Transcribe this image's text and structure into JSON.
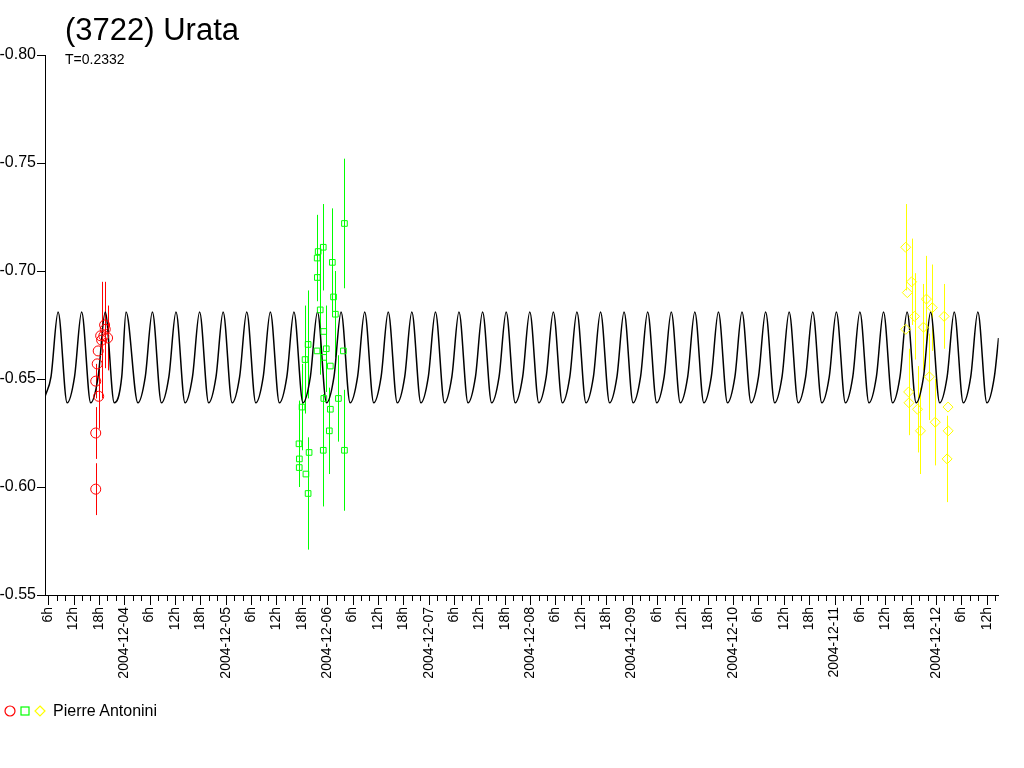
{
  "chart_data": {
    "type": "line",
    "title": "(3722) Urata",
    "subtitle": "T=0.2332",
    "legend": "bottom left",
    "grid": false,
    "xlim": [
      "2004-12-03T05:15",
      "2004-12-12T14:50"
    ],
    "ylim": [
      -0.55,
      -0.8
    ],
    "yticks": [
      {
        "value": -0.8,
        "label": "-0.80"
      },
      {
        "value": -0.75,
        "label": "-0.75"
      },
      {
        "value": -0.7,
        "label": "-0.70"
      },
      {
        "value": -0.65,
        "label": "-0.65"
      },
      {
        "value": -0.6,
        "label": "-0.60"
      },
      {
        "value": -0.55,
        "label": "-0.55"
      }
    ],
    "xticks": [
      {
        "value": "2004-12-03T06:00",
        "label": "6h"
      },
      {
        "value": "2004-12-03T08:00",
        "label": null
      },
      {
        "value": "2004-12-03T10:00",
        "label": null
      },
      {
        "value": "2004-12-03T12:00",
        "label": "12h"
      },
      {
        "value": "2004-12-03T14:00",
        "label": null
      },
      {
        "value": "2004-12-03T16:00",
        "label": null
      },
      {
        "value": "2004-12-03T18:00",
        "label": "18h"
      },
      {
        "value": "2004-12-03T20:00",
        "label": null
      },
      {
        "value": "2004-12-03T22:00",
        "label": null
      },
      {
        "value": "2004-12-04T00:00",
        "label": "2004-12-04"
      },
      {
        "value": "2004-12-04T02:00",
        "label": null
      },
      {
        "value": "2004-12-04T04:00",
        "label": null
      },
      {
        "value": "2004-12-04T06:00",
        "label": "6h"
      },
      {
        "value": "2004-12-04T08:00",
        "label": null
      },
      {
        "value": "2004-12-04T10:00",
        "label": null
      },
      {
        "value": "2004-12-04T12:00",
        "label": "12h"
      },
      {
        "value": "2004-12-04T14:00",
        "label": null
      },
      {
        "value": "2004-12-04T16:00",
        "label": null
      },
      {
        "value": "2004-12-04T18:00",
        "label": "18h"
      },
      {
        "value": "2004-12-04T20:00",
        "label": null
      },
      {
        "value": "2004-12-04T22:00",
        "label": null
      },
      {
        "value": "2004-12-05T00:00",
        "label": "2004-12-05"
      },
      {
        "value": "2004-12-05T02:00",
        "label": null
      },
      {
        "value": "2004-12-05T04:00",
        "label": null
      },
      {
        "value": "2004-12-05T06:00",
        "label": "6h"
      },
      {
        "value": "2004-12-05T08:00",
        "label": null
      },
      {
        "value": "2004-12-05T10:00",
        "label": null
      },
      {
        "value": "2004-12-05T12:00",
        "label": "12h"
      },
      {
        "value": "2004-12-05T14:00",
        "label": null
      },
      {
        "value": "2004-12-05T16:00",
        "label": null
      },
      {
        "value": "2004-12-05T18:00",
        "label": "18h"
      },
      {
        "value": "2004-12-05T20:00",
        "label": null
      },
      {
        "value": "2004-12-05T22:00",
        "label": null
      },
      {
        "value": "2004-12-06T00:00",
        "label": "2004-12-06"
      },
      {
        "value": "2004-12-06T02:00",
        "label": null
      },
      {
        "value": "2004-12-06T04:00",
        "label": null
      },
      {
        "value": "2004-12-06T06:00",
        "label": "6h"
      },
      {
        "value": "2004-12-06T08:00",
        "label": null
      },
      {
        "value": "2004-12-06T10:00",
        "label": null
      },
      {
        "value": "2004-12-06T12:00",
        "label": "12h"
      },
      {
        "value": "2004-12-06T14:00",
        "label": null
      },
      {
        "value": "2004-12-06T16:00",
        "label": null
      },
      {
        "value": "2004-12-06T18:00",
        "label": "18h"
      },
      {
        "value": "2004-12-06T20:00",
        "label": null
      },
      {
        "value": "2004-12-06T22:00",
        "label": null
      },
      {
        "value": "2004-12-07T00:00",
        "label": "2004-12-07"
      },
      {
        "value": "2004-12-07T02:00",
        "label": null
      },
      {
        "value": "2004-12-07T04:00",
        "label": null
      },
      {
        "value": "2004-12-07T06:00",
        "label": "6h"
      },
      {
        "value": "2004-12-07T08:00",
        "label": null
      },
      {
        "value": "2004-12-07T10:00",
        "label": null
      },
      {
        "value": "2004-12-07T12:00",
        "label": "12h"
      },
      {
        "value": "2004-12-07T14:00",
        "label": null
      },
      {
        "value": "2004-12-07T16:00",
        "label": null
      },
      {
        "value": "2004-12-07T18:00",
        "label": "18h"
      },
      {
        "value": "2004-12-07T20:00",
        "label": null
      },
      {
        "value": "2004-12-07T22:00",
        "label": null
      },
      {
        "value": "2004-12-08T00:00",
        "label": "2004-12-08"
      },
      {
        "value": "2004-12-08T02:00",
        "label": null
      },
      {
        "value": "2004-12-08T04:00",
        "label": null
      },
      {
        "value": "2004-12-08T06:00",
        "label": "6h"
      },
      {
        "value": "2004-12-08T08:00",
        "label": null
      },
      {
        "value": "2004-12-08T10:00",
        "label": null
      },
      {
        "value": "2004-12-08T12:00",
        "label": "12h"
      },
      {
        "value": "2004-12-08T14:00",
        "label": null
      },
      {
        "value": "2004-12-08T16:00",
        "label": null
      },
      {
        "value": "2004-12-08T18:00",
        "label": "18h"
      },
      {
        "value": "2004-12-08T20:00",
        "label": null
      },
      {
        "value": "2004-12-08T22:00",
        "label": null
      },
      {
        "value": "2004-12-09T00:00",
        "label": "2004-12-09"
      },
      {
        "value": "2004-12-09T02:00",
        "label": null
      },
      {
        "value": "2004-12-09T04:00",
        "label": null
      },
      {
        "value": "2004-12-09T06:00",
        "label": "6h"
      },
      {
        "value": "2004-12-09T08:00",
        "label": null
      },
      {
        "value": "2004-12-09T10:00",
        "label": null
      },
      {
        "value": "2004-12-09T12:00",
        "label": "12h"
      },
      {
        "value": "2004-12-09T14:00",
        "label": null
      },
      {
        "value": "2004-12-09T16:00",
        "label": null
      },
      {
        "value": "2004-12-09T18:00",
        "label": "18h"
      },
      {
        "value": "2004-12-09T20:00",
        "label": null
      },
      {
        "value": "2004-12-09T22:00",
        "label": null
      },
      {
        "value": "2004-12-10T00:00",
        "label": "2004-12-10"
      },
      {
        "value": "2004-12-10T02:00",
        "label": null
      },
      {
        "value": "2004-12-10T04:00",
        "label": null
      },
      {
        "value": "2004-12-10T06:00",
        "label": "6h"
      },
      {
        "value": "2004-12-10T08:00",
        "label": null
      },
      {
        "value": "2004-12-10T10:00",
        "label": null
      },
      {
        "value": "2004-12-10T12:00",
        "label": "12h"
      },
      {
        "value": "2004-12-10T14:00",
        "label": null
      },
      {
        "value": "2004-12-10T16:00",
        "label": null
      },
      {
        "value": "2004-12-10T18:00",
        "label": "18h"
      },
      {
        "value": "2004-12-10T20:00",
        "label": null
      },
      {
        "value": "2004-12-10T22:00",
        "label": null
      },
      {
        "value": "2004-12-11T00:00",
        "label": "2004-12-11"
      },
      {
        "value": "2004-12-11T02:00",
        "label": null
      },
      {
        "value": "2004-12-11T04:00",
        "label": null
      },
      {
        "value": "2004-12-11T06:00",
        "label": "6h"
      },
      {
        "value": "2004-12-11T08:00",
        "label": null
      },
      {
        "value": "2004-12-11T10:00",
        "label": null
      },
      {
        "value": "2004-12-11T12:00",
        "label": "12h"
      },
      {
        "value": "2004-12-11T14:00",
        "label": null
      },
      {
        "value": "2004-12-11T16:00",
        "label": null
      },
      {
        "value": "2004-12-11T18:00",
        "label": "18h"
      },
      {
        "value": "2004-12-11T20:00",
        "label": null
      },
      {
        "value": "2004-12-11T22:00",
        "label": null
      },
      {
        "value": "2004-12-12T00:00",
        "label": "2004-12-12"
      },
      {
        "value": "2004-12-12T02:00",
        "label": null
      },
      {
        "value": "2004-12-12T04:00",
        "label": null
      },
      {
        "value": "2004-12-12T06:00",
        "label": "6h"
      },
      {
        "value": "2004-12-12T08:00",
        "label": null
      },
      {
        "value": "2004-12-12T10:00",
        "label": null
      },
      {
        "value": "2004-12-12T12:00",
        "label": "12h"
      },
      {
        "value": "2004-12-12T14:00",
        "label": null
      }
    ],
    "series": [
      {
        "type": "line",
        "color": "#000000",
        "marker": "none",
        "x": [
          "2004-12-03T05:17",
          "2004-12-03T06:40",
          "2004-12-03T08:21",
          "2004-12-03T10:29",
          "2004-12-03T12:14",
          "2004-12-03T13:55",
          "2004-12-03T16:03",
          "2004-12-03T17:49",
          "2004-12-03T19:30",
          "2004-12-03T21:38",
          "2004-12-03T23:24",
          "2004-12-04T00:25",
          "2004-12-04T03:13",
          "2004-12-04T04:58",
          "2004-12-04T06:39",
          "2004-12-04T08:47",
          "2004-12-04T10:33",
          "2004-12-04T12:14",
          "2004-12-04T14:22",
          "2004-12-04T16:08",
          "2004-12-04T17:49",
          "2004-12-04T19:57",
          "2004-12-04T21:42",
          "2004-12-04T23:23",
          "2004-12-05T01:31",
          "2004-12-05T03:17",
          "2004-12-05T04:58",
          "2004-12-05T07:06",
          "2004-12-05T08:52",
          "2004-12-05T10:33",
          "2004-12-05T12:41",
          "2004-12-05T14:27",
          "2004-12-05T16:08",
          "2004-12-05T18:16",
          "2004-12-05T20:01",
          "2004-12-05T21:42",
          "2004-12-05T23:50",
          "2004-12-06T01:36",
          "2004-12-06T03:17",
          "2004-12-06T05:25",
          "2004-12-06T07:11",
          "2004-12-06T08:52",
          "2004-12-06T11:00",
          "2004-12-06T12:45",
          "2004-12-06T14:26",
          "2004-12-06T16:34",
          "2004-12-06T18:20",
          "2004-12-06T20:01",
          "2004-12-06T22:09",
          "2004-12-06T23:55",
          "2004-12-07T01:36",
          "2004-12-07T03:44",
          "2004-12-07T05:29",
          "2004-12-07T07:10",
          "2004-12-07T09:18",
          "2004-12-07T11:04",
          "2004-12-07T12:45",
          "2004-12-07T14:53",
          "2004-12-07T16:39",
          "2004-12-07T18:20",
          "2004-12-07T20:28",
          "2004-12-07T22:14",
          "2004-12-07T23:55",
          "2004-12-08T02:03",
          "2004-12-08T03:48",
          "2004-12-08T05:29",
          "2004-12-08T07:37",
          "2004-12-08T09:23",
          "2004-12-08T11:04",
          "2004-12-08T13:12",
          "2004-12-08T14:58",
          "2004-12-08T16:39",
          "2004-12-08T18:47",
          "2004-12-08T20:32",
          "2004-12-08T22:13",
          "2004-12-09T00:21",
          "2004-12-09T02:07",
          "2004-12-09T03:48",
          "2004-12-09T05:56",
          "2004-12-09T07:42",
          "2004-12-09T09:23",
          "2004-12-09T11:31",
          "2004-12-09T13:16",
          "2004-12-09T14:57",
          "2004-12-09T17:05",
          "2004-12-09T18:51",
          "2004-12-09T20:32",
          "2004-12-09T22:40",
          "2004-12-10T00:26",
          "2004-12-10T02:07",
          "2004-12-10T04:15",
          "2004-12-10T06:01",
          "2004-12-10T07:42",
          "2004-12-10T09:50",
          "2004-12-10T11:35",
          "2004-12-10T13:16",
          "2004-12-10T15:24",
          "2004-12-10T17:10",
          "2004-12-10T18:51",
          "2004-12-10T20:59",
          "2004-12-10T22:45",
          "2004-12-11T00:26",
          "2004-12-11T02:34",
          "2004-12-11T04:19",
          "2004-12-11T06:00",
          "2004-12-11T08:08",
          "2004-12-11T09:54",
          "2004-12-11T11:35",
          "2004-12-11T13:43",
          "2004-12-11T15:29",
          "2004-12-11T17:10",
          "2004-12-11T19:18",
          "2004-12-11T21:03",
          "2004-12-11T22:44",
          "2004-12-12T00:52",
          "2004-12-12T02:38",
          "2004-12-12T04:19",
          "2004-12-12T06:27",
          "2004-12-12T08:13",
          "2004-12-12T09:54",
          "2004-12-12T12:02",
          "2004-12-12T13:48",
          "2004-12-12T14:48"
        ],
        "values": [
          -0.642,
          -0.651,
          -0.681,
          -0.639,
          -0.651,
          -0.681,
          -0.639,
          -0.651,
          -0.681,
          -0.639,
          -0.651,
          -0.681,
          -0.639,
          -0.651,
          -0.681,
          -0.639,
          -0.651,
          -0.681,
          -0.639,
          -0.651,
          -0.681,
          -0.639,
          -0.651,
          -0.681,
          -0.639,
          -0.651,
          -0.681,
          -0.639,
          -0.651,
          -0.681,
          -0.639,
          -0.651,
          -0.681,
          -0.639,
          -0.651,
          -0.681,
          -0.639,
          -0.651,
          -0.681,
          -0.639,
          -0.651,
          -0.681,
          -0.639,
          -0.651,
          -0.681,
          -0.639,
          -0.651,
          -0.681,
          -0.639,
          -0.651,
          -0.681,
          -0.639,
          -0.651,
          -0.681,
          -0.639,
          -0.651,
          -0.681,
          -0.639,
          -0.651,
          -0.681,
          -0.639,
          -0.651,
          -0.681,
          -0.639,
          -0.651,
          -0.681,
          -0.639,
          -0.651,
          -0.681,
          -0.639,
          -0.651,
          -0.681,
          -0.639,
          -0.651,
          -0.681,
          -0.639,
          -0.651,
          -0.681,
          -0.639,
          -0.651,
          -0.681,
          -0.639,
          -0.651,
          -0.681,
          -0.639,
          -0.651,
          -0.681,
          -0.639,
          -0.651,
          -0.681,
          -0.639,
          -0.651,
          -0.681,
          -0.639,
          -0.651,
          -0.681,
          -0.639,
          -0.651,
          -0.681,
          -0.639,
          -0.651,
          -0.681,
          -0.639,
          -0.651,
          -0.681,
          -0.639,
          -0.651,
          -0.681,
          -0.639,
          -0.651,
          -0.681,
          -0.639,
          -0.651,
          -0.681,
          -0.639,
          -0.651,
          -0.681,
          -0.639,
          -0.651,
          -0.681,
          -0.639,
          -0.651,
          -0.669
        ]
      },
      {
        "type": "scatter",
        "color": "#ff0000",
        "marker": "circle",
        "x": [
          "2004-12-03T17:15",
          "2004-12-03T17:15",
          "2004-12-03T17:57",
          "2004-12-03T17:15",
          "2004-12-03T17:36",
          "2004-12-03T17:50",
          "2004-12-03T18:39",
          "2004-12-03T18:25",
          "2004-12-03T19:21",
          "2004-12-03T19:10",
          "2004-12-03T19:30",
          "2004-12-03T20:03"
        ],
        "values": [
          -0.599,
          -0.625,
          -0.642,
          -0.649,
          -0.657,
          -0.663,
          -0.668,
          -0.67,
          -0.675,
          -0.67,
          -0.673,
          -0.669
        ],
        "errors": [
          0.012,
          0.012,
          0.015,
          0.008,
          null,
          null,
          0.027,
          null,
          0.02,
          null,
          null,
          0.015
        ]
      },
      {
        "type": "scatter",
        "color": "#00ff00",
        "marker": "square",
        "x": [
          "2004-12-06T04:05",
          "2004-12-05T23:04",
          "2004-12-05T21:52",
          "2004-12-05T21:38",
          "2004-12-06T01:13",
          "2004-12-05T21:40",
          "2004-12-06T01:30",
          "2004-12-05T22:21",
          "2004-12-06T01:56",
          "2004-12-05T23:11",
          "2004-12-05T19:29",
          "2004-12-05T23:47",
          "2004-12-05T21:36",
          "2004-12-06T03:50",
          "2004-12-05T18:46",
          "2004-12-05T23:10",
          "2004-12-06T00:44",
          "2004-12-05T23:12",
          "2004-12-06T02:39",
          "2004-12-06T00:45",
          "2004-12-05T18:03",
          "2004-12-06T00:30",
          "2004-12-05T17:20",
          "2004-12-05T23:04",
          "2004-12-06T04:05",
          "2004-12-05T19:43",
          "2004-12-05T17:25",
          "2004-12-05T17:23",
          "2004-12-05T18:58",
          "2004-12-05T19:29"
        ],
        "values": [
          -0.722,
          -0.711,
          -0.709,
          -0.706,
          -0.704,
          -0.697,
          -0.688,
          -0.682,
          -0.68,
          -0.672,
          -0.666,
          -0.664,
          -0.663,
          -0.663,
          -0.659,
          -0.66,
          -0.656,
          -0.641,
          -0.641,
          -0.636,
          -0.637,
          -0.626,
          -0.62,
          -0.617,
          -0.617,
          -0.616,
          -0.613,
          -0.609,
          -0.606,
          -0.597
        ],
        "errors": [
          0.03,
          0.02,
          null,
          0.02,
          0.025,
          null,
          null,
          0.03,
          0.02,
          null,
          0.025,
          0.02,
          null,
          null,
          0.025,
          null,
          null,
          null,
          0.02,
          null,
          0.02,
          0.02,
          0.02,
          0.026,
          0.028,
          null,
          null,
          null,
          null,
          0.026
        ]
      },
      {
        "name": "Pierre Antonini",
        "type": "scatter",
        "color": "#ffff00",
        "marker": "diamond",
        "x": [
          "2004-12-11T16:50",
          "2004-12-11T18:14",
          "2004-12-11T17:13",
          "2004-12-11T21:44",
          "2004-12-12T01:56",
          "2004-12-11T18:56",
          "2004-12-11T23:08",
          "2004-12-11T16:52",
          "2004-12-11T21:02",
          "2004-12-11T17:32",
          "2004-12-11T17:37",
          "2004-12-11T20:20",
          "2004-12-11T23:50",
          "2004-12-12T02:51",
          "2004-12-12T02:53",
          "2004-12-12T02:38",
          "2004-12-11T19:38",
          "2004-12-11T22:26"
        ],
        "values": [
          -0.711,
          -0.695,
          -0.69,
          -0.687,
          -0.679,
          -0.679,
          -0.683,
          -0.673,
          -0.674,
          -0.644,
          -0.639,
          -0.626,
          -0.63,
          -0.637,
          -0.626,
          -0.613,
          -0.636,
          -0.651
        ],
        "errors": [
          0.02,
          0.02,
          null,
          0.02,
          0.015,
          0.02,
          0.02,
          null,
          0.02,
          0.02,
          null,
          0.02,
          0.02,
          null,
          null,
          0.02,
          0.02,
          0.02
        ]
      }
    ]
  }
}
